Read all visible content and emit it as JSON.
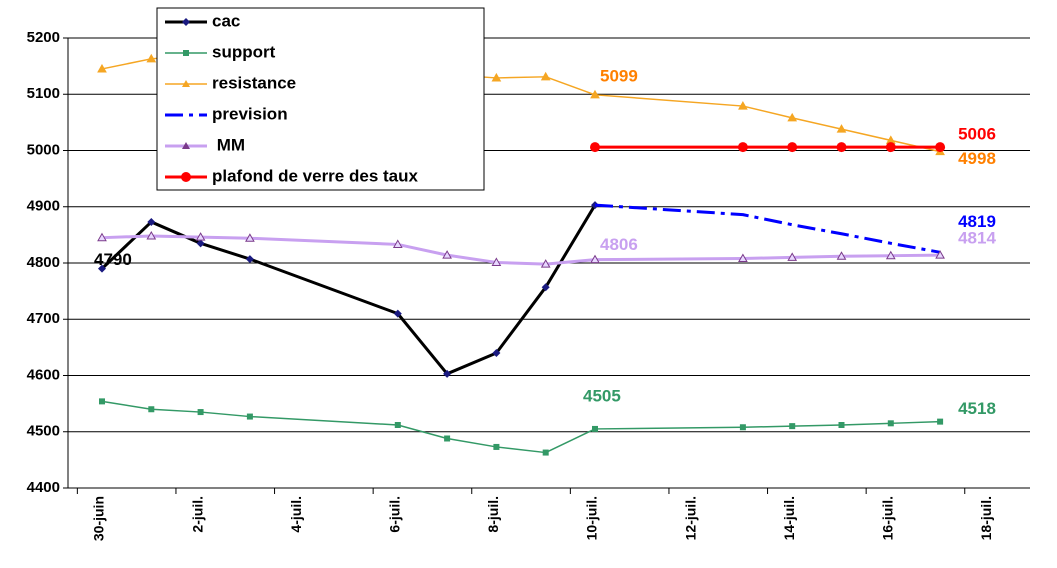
{
  "chart_data": {
    "type": "line",
    "categories": [
      "30-juin",
      null,
      "2-juil.",
      null,
      "4-juil.",
      null,
      "6-juil.",
      null,
      "8-juil.",
      null,
      "10-juil.",
      null,
      "12-juil.",
      null,
      "14-juil.",
      null,
      "16-juil.",
      null,
      "18-juil."
    ],
    "ylim": [
      4400,
      5200
    ],
    "yticks": [
      4400,
      4500,
      4600,
      4700,
      4800,
      4900,
      5000,
      5100,
      5200
    ],
    "grid": true,
    "connect_gaps": true,
    "legend": "top-left",
    "series": [
      {
        "name": "cac",
        "color": "#000000",
        "marker": "diamond",
        "marker_color": "#1a1a80",
        "dash": "solid",
        "width": 3,
        "values": [
          4790,
          4873,
          4835,
          4807,
          null,
          null,
          4710,
          4603,
          4640,
          4757,
          4903,
          null,
          null,
          null,
          null,
          null,
          null,
          null,
          null
        ],
        "data_labels": [
          0
        ],
        "label_color": "#000000"
      },
      {
        "name": "support",
        "color": "#339966",
        "marker": "square",
        "marker_color": "#339966",
        "dash": "solid",
        "width": 1.5,
        "values": [
          4554,
          4540,
          4535,
          4527,
          null,
          null,
          4512,
          4488,
          4473,
          4463,
          4505,
          null,
          null,
          4508,
          4510,
          4512,
          4515,
          4518,
          null
        ],
        "data_labels": [
          10,
          17
        ],
        "label_color": "#339966"
      },
      {
        "name": "resistance",
        "color": "#f5a623",
        "marker": "triangle",
        "marker_color": "#f5a623",
        "dash": "solid",
        "width": 1.5,
        "values": [
          5145,
          5163,
          5170,
          5168,
          null,
          null,
          5140,
          5135,
          5129,
          5131,
          5099,
          null,
          null,
          5079,
          5058,
          5038,
          5018,
          4998,
          null
        ],
        "data_labels": [
          10,
          17
        ],
        "label_color": "#ff8000"
      },
      {
        "name": "prevision",
        "color": "#0000ff",
        "marker": "none",
        "marker_color": "#0000ff",
        "dash": "dashdot",
        "width": 3,
        "values": [
          null,
          null,
          null,
          null,
          null,
          null,
          null,
          null,
          null,
          null,
          4903,
          null,
          null,
          4886,
          4868,
          4852,
          4835,
          4819,
          null
        ],
        "data_labels": [
          10,
          17
        ],
        "label_color": "#0000ff"
      },
      {
        "name": " MM",
        "color": "#c8a0f0",
        "marker": "triangle",
        "marker_color": "#7a3a8a",
        "dash": "solid",
        "width": 3,
        "values": [
          4845,
          4848,
          4846,
          4844,
          null,
          null,
          4833,
          4814,
          4801,
          4798,
          4806,
          null,
          null,
          4808,
          4810,
          4812,
          4813,
          4814,
          null
        ],
        "data_labels": [
          10,
          17
        ],
        "label_color": "#c8a0f0"
      },
      {
        "name": "plafond de verre des taux",
        "color": "#ff0000",
        "marker": "circle",
        "marker_color": "#ff0000",
        "dash": "solid",
        "width": 3,
        "values": [
          null,
          null,
          null,
          null,
          null,
          null,
          null,
          null,
          null,
          null,
          5006,
          null,
          null,
          5006,
          5006,
          5006,
          5006,
          5006,
          null
        ],
        "data_labels": [
          17
        ],
        "label_color": "#ff0000"
      }
    ]
  }
}
